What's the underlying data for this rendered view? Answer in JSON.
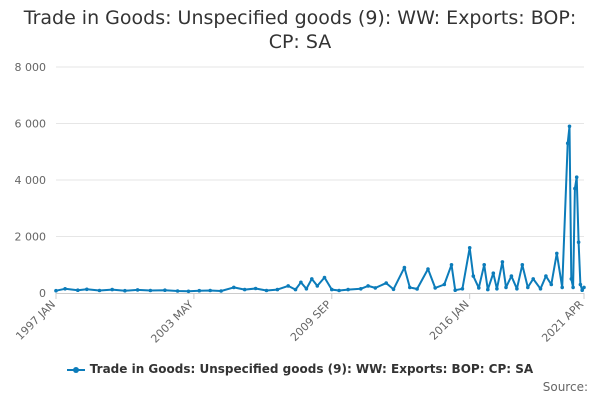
{
  "title_line1": "Trade in Goods: Unspecified goods (9): WW: Exports: BOP:",
  "title_line2": "CP: SA",
  "source_label": "Source:",
  "colors": {
    "series": "#0c7cba",
    "grid": "#e6e6e6",
    "text": "#666666"
  },
  "chart_data": {
    "type": "line",
    "title": "Trade in Goods: Unspecified goods (9): WW: Exports: BOP: CP: SA",
    "xlabel": "",
    "ylabel": "",
    "ylim": [
      0,
      8000
    ],
    "yticks": [
      0,
      2000,
      4000,
      6000,
      8000
    ],
    "ytick_labels": [
      "0",
      "2 000",
      "4 000",
      "6 000",
      "8 000"
    ],
    "xtick_labels": [
      "1997 JAN",
      "2003 MAY",
      "2009 SEP",
      "2016 JAN",
      "2021 APR"
    ],
    "xtick_dates": [
      "1997-01",
      "2003-05",
      "2009-09",
      "2016-01",
      "2021-04"
    ],
    "x_range": [
      "1997-01",
      "2021-04"
    ],
    "grid": true,
    "legend_position": "bottom",
    "series": [
      {
        "name": "Trade in Goods: Unspecified goods (9): WW: Exports: BOP: CP: SA",
        "points": [
          [
            "1997-01",
            80
          ],
          [
            "1997-06",
            150
          ],
          [
            "1998-01",
            100
          ],
          [
            "1998-06",
            130
          ],
          [
            "1999-01",
            90
          ],
          [
            "1999-08",
            120
          ],
          [
            "2000-03",
            80
          ],
          [
            "2000-10",
            110
          ],
          [
            "2001-05",
            90
          ],
          [
            "2002-01",
            100
          ],
          [
            "2002-08",
            70
          ],
          [
            "2003-02",
            60
          ],
          [
            "2003-08",
            80
          ],
          [
            "2004-02",
            90
          ],
          [
            "2004-08",
            70
          ],
          [
            "2005-03",
            200
          ],
          [
            "2005-09",
            120
          ],
          [
            "2006-03",
            160
          ],
          [
            "2006-09",
            90
          ],
          [
            "2007-03",
            120
          ],
          [
            "2007-09",
            250
          ],
          [
            "2008-01",
            120
          ],
          [
            "2008-04",
            380
          ],
          [
            "2008-07",
            150
          ],
          [
            "2008-10",
            500
          ],
          [
            "2009-01",
            250
          ],
          [
            "2009-05",
            550
          ],
          [
            "2009-09",
            120
          ],
          [
            "2010-01",
            90
          ],
          [
            "2010-06",
            120
          ],
          [
            "2011-01",
            150
          ],
          [
            "2011-05",
            250
          ],
          [
            "2011-09",
            180
          ],
          [
            "2012-03",
            350
          ],
          [
            "2012-07",
            130
          ],
          [
            "2013-01",
            900
          ],
          [
            "2013-04",
            200
          ],
          [
            "2013-08",
            140
          ],
          [
            "2014-02",
            850
          ],
          [
            "2014-06",
            180
          ],
          [
            "2014-11",
            300
          ],
          [
            "2015-03",
            1000
          ],
          [
            "2015-05",
            100
          ],
          [
            "2015-09",
            150
          ],
          [
            "2016-01",
            1600
          ],
          [
            "2016-03",
            600
          ],
          [
            "2016-06",
            180
          ],
          [
            "2016-09",
            1000
          ],
          [
            "2016-11",
            120
          ],
          [
            "2017-02",
            700
          ],
          [
            "2017-04",
            150
          ],
          [
            "2017-07",
            1100
          ],
          [
            "2017-09",
            200
          ],
          [
            "2017-12",
            600
          ],
          [
            "2018-03",
            150
          ],
          [
            "2018-06",
            1000
          ],
          [
            "2018-09",
            200
          ],
          [
            "2018-12",
            500
          ],
          [
            "2019-04",
            150
          ],
          [
            "2019-07",
            600
          ],
          [
            "2019-10",
            300
          ],
          [
            "2020-01",
            1400
          ],
          [
            "2020-04",
            200
          ],
          [
            "2020-07",
            5300
          ],
          [
            "2020-08",
            5900
          ],
          [
            "2020-09",
            500
          ],
          [
            "2020-10",
            200
          ],
          [
            "2020-11",
            3700
          ],
          [
            "2020-12",
            4100
          ],
          [
            "2021-01",
            1800
          ],
          [
            "2021-02",
            300
          ],
          [
            "2021-03",
            100
          ],
          [
            "2021-04",
            200
          ]
        ]
      }
    ]
  }
}
